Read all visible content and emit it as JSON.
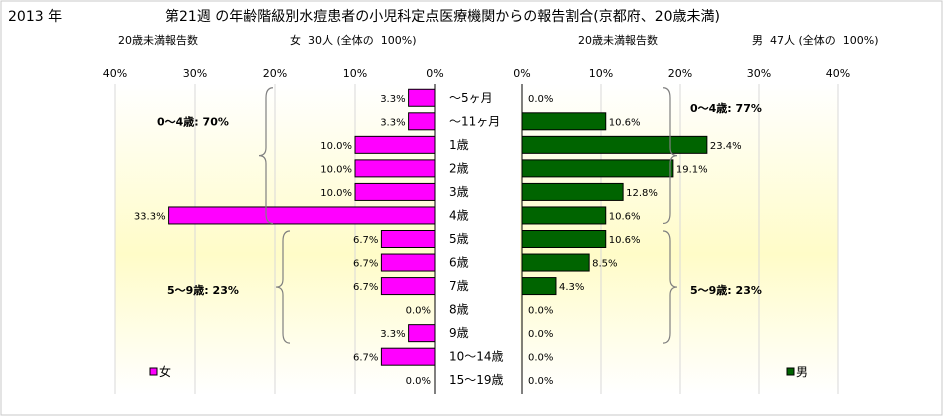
{
  "header": {
    "year": "2013 年",
    "title": "第21週 の年齢階級別水痘患者の小児科定点医療機関からの報告割合(京都府、20歳未満)"
  },
  "subtitles": {
    "left_label": "20歳未満報告数",
    "left_info": "女  30人 (全体の  100%)",
    "right_label": "20歳未満報告数",
    "right_info": "男  47人 (全体の  100%)"
  },
  "chart_data": {
    "type": "bar",
    "categories": [
      "～5ヶ月",
      "～11ヶ月",
      "1歳",
      "2歳",
      "3歳",
      "4歳",
      "5歳",
      "6歳",
      "7歳",
      "8歳",
      "9歳",
      "10～14歳",
      "15～19歳"
    ],
    "series": [
      {
        "name": "女",
        "color": "#ff00ff",
        "values": [
          3.3,
          3.3,
          10.0,
          10.0,
          10.0,
          33.3,
          6.7,
          6.7,
          6.7,
          0.0,
          3.3,
          6.7,
          0.0
        ],
        "labels": [
          "3.3%",
          "3.3%",
          "10.0%",
          "10.0%",
          "10.0%",
          "33.3%",
          "6.7%",
          "6.7%",
          "6.7%",
          "0.0%",
          "3.3%",
          "6.7%",
          "0.0%"
        ]
      },
      {
        "name": "男",
        "color": "#006400",
        "values": [
          0.0,
          10.6,
          23.4,
          19.1,
          12.8,
          10.6,
          10.6,
          8.5,
          4.3,
          0.0,
          0.0,
          0.0,
          0.0
        ],
        "labels": [
          "0.0%",
          "10.6%",
          "23.4%",
          "19.1%",
          "12.8%",
          "10.6%",
          "10.6%",
          "8.5%",
          "4.3%",
          "0.0%",
          "0.0%",
          "0.0%",
          "0.0%"
        ]
      }
    ],
    "xlim": [
      0,
      40
    ],
    "ticks": [
      "0%",
      "10%",
      "20%",
      "30%",
      "40%"
    ],
    "annotations": {
      "female_0_4": "0～4歳: 70%",
      "female_5_9": "5～9歳: 23%",
      "male_0_4": "0～4歳: 77%",
      "male_5_9": "5～9歳: 23%"
    },
    "legend": {
      "female": "女",
      "male": "男",
      "position": "bottom-left / bottom-right"
    },
    "background": "yellow gradient"
  }
}
